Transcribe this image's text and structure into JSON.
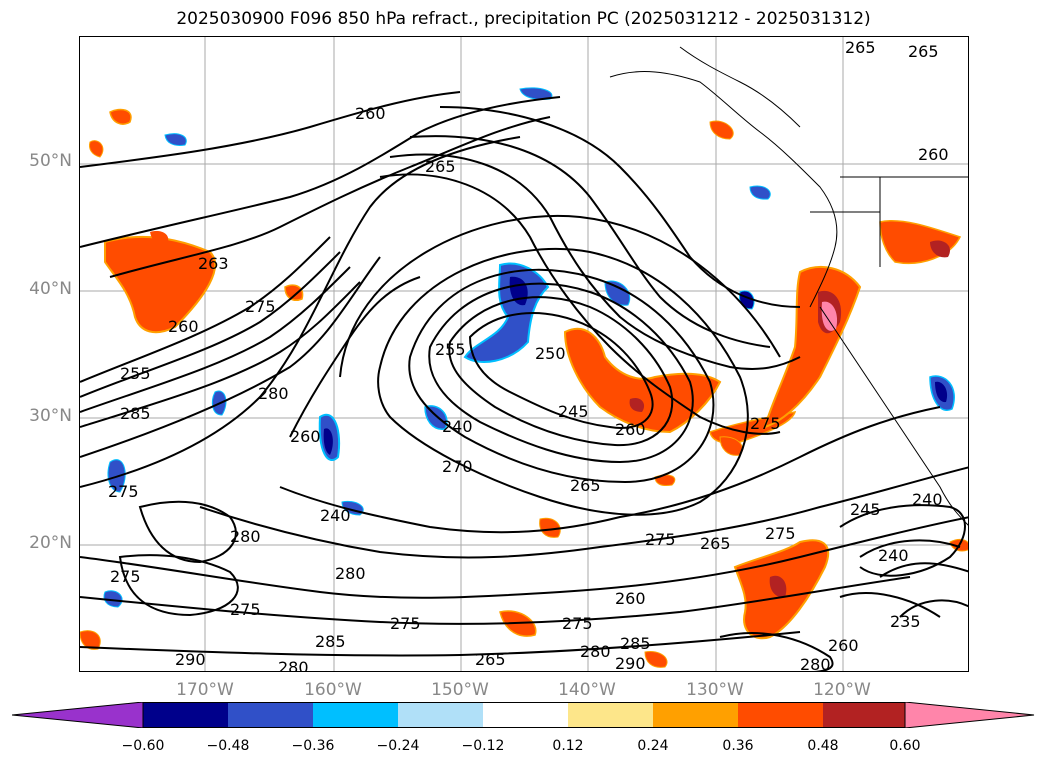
{
  "title": "2025030900 F096 850 hPa refract., precipitation PC (2025031212 - 2025031312)",
  "map": {
    "lat_labels": [
      "50°N",
      "40°N",
      "30°N",
      "20°N"
    ],
    "lon_labels": [
      "170°W",
      "160°W",
      "150°W",
      "140°W",
      "130°W",
      "120°W"
    ],
    "contour_labels": [
      "265",
      "265",
      "260",
      "265",
      "260",
      "263",
      "275",
      "260",
      "255",
      "285",
      "275",
      "280",
      "260",
      "255",
      "250",
      "240",
      "270",
      "245",
      "260",
      "265",
      "275",
      "275",
      "280",
      "240",
      "275",
      "280",
      "275",
      "275",
      "290",
      "280",
      "285",
      "265",
      "280",
      "285",
      "290",
      "275",
      "260",
      "280",
      "235",
      "245",
      "240",
      "240",
      "265",
      "275",
      "260"
    ],
    "colors": {
      "neg_dark": "#00008b",
      "neg_mid": "#3050c8",
      "neg_light": "#00bfff",
      "neg_pale": "#b0e0f8",
      "pos_pale": "#fde68a",
      "pos_orange": "#ffa000",
      "pos_red": "#ff4c00",
      "pos_dark": "#b22222",
      "pos_pink": "#ff85aa"
    }
  },
  "colorbar": {
    "ticks": [
      "−0.60",
      "−0.48",
      "−0.36",
      "−0.24",
      "−0.12",
      "0.12",
      "0.24",
      "0.36",
      "0.48",
      "0.60"
    ],
    "colors": [
      "#9932cc",
      "#00008b",
      "#3050c8",
      "#00bfff",
      "#b0e0f8",
      "#ffffff",
      "#fde68a",
      "#ffa000",
      "#ff4c00",
      "#b22222",
      "#ff85aa"
    ]
  }
}
